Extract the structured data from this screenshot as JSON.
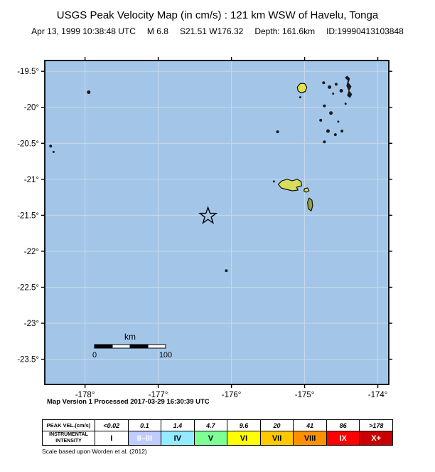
{
  "header": {
    "title": "USGS Peak Velocity Map (in cm/s) : 121 km WSW of Havelu, Tonga",
    "datetime": "Apr 13, 1999 10:38:48 UTC",
    "magnitude": "M 6.8",
    "location": "S21.51 W176.32",
    "depth": "Depth: 161.6km",
    "event_id": "ID:19990413103848"
  },
  "map": {
    "ocean_color": "#a3c6e8",
    "grid_color": "#c8d9ea",
    "lon_range": [
      -178.55,
      -173.85
    ],
    "lat_range": [
      -23.85,
      -19.35
    ],
    "lon_ticks": [
      {
        "value": -178,
        "label": "-178°"
      },
      {
        "value": -177,
        "label": "-177°"
      },
      {
        "value": -176,
        "label": "-176°"
      },
      {
        "value": -175,
        "label": "-175°"
      },
      {
        "value": -174,
        "label": "-174°"
      }
    ],
    "lat_ticks": [
      {
        "value": -19.5,
        "label": "-19.5°"
      },
      {
        "value": -20,
        "label": "-20°"
      },
      {
        "value": -20.5,
        "label": "-20.5°"
      },
      {
        "value": -21,
        "label": "-21°"
      },
      {
        "value": -21.5,
        "label": "-21.5°"
      },
      {
        "value": -22,
        "label": "-22°"
      },
      {
        "value": -22.5,
        "label": "-22.5°"
      },
      {
        "value": -23,
        "label": "-23°"
      },
      {
        "value": -23.5,
        "label": "-23.5°"
      }
    ],
    "epicenter": {
      "lon": -176.32,
      "lat": -21.51
    },
    "scale_bar": {
      "unit": "km",
      "start_label": "0",
      "end_label": "100",
      "length_km": 100
    },
    "caption": "Map Version 1 Processed 2017-03-29 16:30:39 UTC",
    "islands": {
      "polygons": [
        {
          "name": "tofua",
          "fill": "#e6e14e",
          "stroke": "#111111",
          "pts": [
            [
              -175.1,
              -19.72
            ],
            [
              -175.06,
              -19.67
            ],
            [
              -175.0,
              -19.67
            ],
            [
              -174.97,
              -19.72
            ],
            [
              -174.99,
              -19.78
            ],
            [
              -175.05,
              -19.8
            ],
            [
              -175.09,
              -19.77
            ]
          ]
        },
        {
          "name": "tongatapu",
          "fill": "#d8dd5c",
          "stroke": "#111111",
          "pts": [
            [
              -175.36,
              -21.07
            ],
            [
              -175.31,
              -21.02
            ],
            [
              -175.24,
              -21.0
            ],
            [
              -175.17,
              -21.02
            ],
            [
              -175.1,
              -21.0
            ],
            [
              -175.05,
              -21.03
            ],
            [
              -175.04,
              -21.09
            ],
            [
              -175.11,
              -21.11
            ],
            [
              -175.09,
              -21.15
            ],
            [
              -175.17,
              -21.16
            ],
            [
              -175.25,
              -21.14
            ],
            [
              -175.32,
              -21.12
            ]
          ]
        },
        {
          "name": "island-east-of-tongatapu",
          "fill": "#d8dd5c",
          "stroke": "#111111",
          "pts": [
            [
              -175.0,
              -21.13
            ],
            [
              -174.96,
              -21.12
            ],
            [
              -174.94,
              -21.16
            ],
            [
              -174.98,
              -21.18
            ],
            [
              -175.01,
              -21.16
            ]
          ]
        },
        {
          "name": "eua",
          "fill": "#9aa33d",
          "stroke": "#111111",
          "pts": [
            [
              -174.94,
              -21.26
            ],
            [
              -174.9,
              -21.29
            ],
            [
              -174.89,
              -21.37
            ],
            [
              -174.91,
              -21.44
            ],
            [
              -174.95,
              -21.41
            ],
            [
              -174.96,
              -21.32
            ]
          ]
        },
        {
          "name": "vavau-chain",
          "fill": "#1a1a1a",
          "stroke": "none",
          "pts": [
            [
              -174.42,
              -19.56
            ],
            [
              -174.38,
              -19.6
            ],
            [
              -174.4,
              -19.66
            ],
            [
              -174.36,
              -19.71
            ],
            [
              -174.39,
              -19.77
            ],
            [
              -174.35,
              -19.82
            ],
            [
              -174.38,
              -19.87
            ],
            [
              -174.42,
              -19.84
            ],
            [
              -174.4,
              -19.77
            ],
            [
              -174.43,
              -19.7
            ],
            [
              -174.41,
              -19.63
            ],
            [
              -174.45,
              -19.59
            ]
          ]
        }
      ],
      "islets": [
        {
          "lon": -177.95,
          "lat": -19.79,
          "r": 2.5
        },
        {
          "lon": -178.47,
          "lat": -20.54,
          "r": 2
        },
        {
          "lon": -178.43,
          "lat": -20.62,
          "r": 1.5
        },
        {
          "lon": -176.07,
          "lat": -22.27,
          "r": 2
        },
        {
          "lon": -175.37,
          "lat": -20.34,
          "r": 2
        },
        {
          "lon": -175.42,
          "lat": -21.03,
          "r": 1.5
        },
        {
          "lon": -174.74,
          "lat": -19.66,
          "r": 2
        },
        {
          "lon": -174.66,
          "lat": -19.72,
          "r": 2.5
        },
        {
          "lon": -174.57,
          "lat": -19.68,
          "r": 2
        },
        {
          "lon": -174.5,
          "lat": -19.77,
          "r": 2.5
        },
        {
          "lon": -174.61,
          "lat": -19.81,
          "r": 1.5
        },
        {
          "lon": -174.73,
          "lat": -19.98,
          "r": 2
        },
        {
          "lon": -174.64,
          "lat": -20.08,
          "r": 2.5
        },
        {
          "lon": -174.78,
          "lat": -20.18,
          "r": 2
        },
        {
          "lon": -174.68,
          "lat": -20.33,
          "r": 2.5
        },
        {
          "lon": -174.58,
          "lat": -20.38,
          "r": 2
        },
        {
          "lon": -174.49,
          "lat": -20.33,
          "r": 2
        },
        {
          "lon": -174.73,
          "lat": -20.48,
          "r": 2
        },
        {
          "lon": -174.54,
          "lat": -20.2,
          "r": 1.5
        },
        {
          "lon": -174.44,
          "lat": -19.95,
          "r": 1.5
        },
        {
          "lon": -175.06,
          "lat": -19.86,
          "r": 1.5
        }
      ]
    }
  },
  "legend": {
    "row1_header": "PEAK VEL.(cm/s)",
    "row2_header_line1": "INSTRUMENTAL",
    "row2_header_line2": "INTENSITY",
    "cells": [
      {
        "vel": "<0.02",
        "intensity": "I",
        "color": "#ffffff",
        "text_color": "#000000"
      },
      {
        "vel": "0.1",
        "intensity": "II–III",
        "color": "#bfccff",
        "text_color": "#ffffff"
      },
      {
        "vel": "1.4",
        "intensity": "IV",
        "color": "#92ebff",
        "text_color": "#000000"
      },
      {
        "vel": "4.7",
        "intensity": "V",
        "color": "#7dff96",
        "text_color": "#000000"
      },
      {
        "vel": "9.6",
        "intensity": "VI",
        "color": "#ffff00",
        "text_color": "#000000"
      },
      {
        "vel": "20",
        "intensity": "VII",
        "color": "#ffc800",
        "text_color": "#000000"
      },
      {
        "vel": "41",
        "intensity": "VIII",
        "color": "#ff9100",
        "text_color": "#000000"
      },
      {
        "vel": "86",
        "intensity": "IX",
        "color": "#ff0000",
        "text_color": "#ffffff"
      },
      {
        "vel": ">178",
        "intensity": "X+",
        "color": "#c80000",
        "text_color": "#ffffff"
      }
    ],
    "footnote": "Scale based upon Worden et al. (2012)"
  }
}
